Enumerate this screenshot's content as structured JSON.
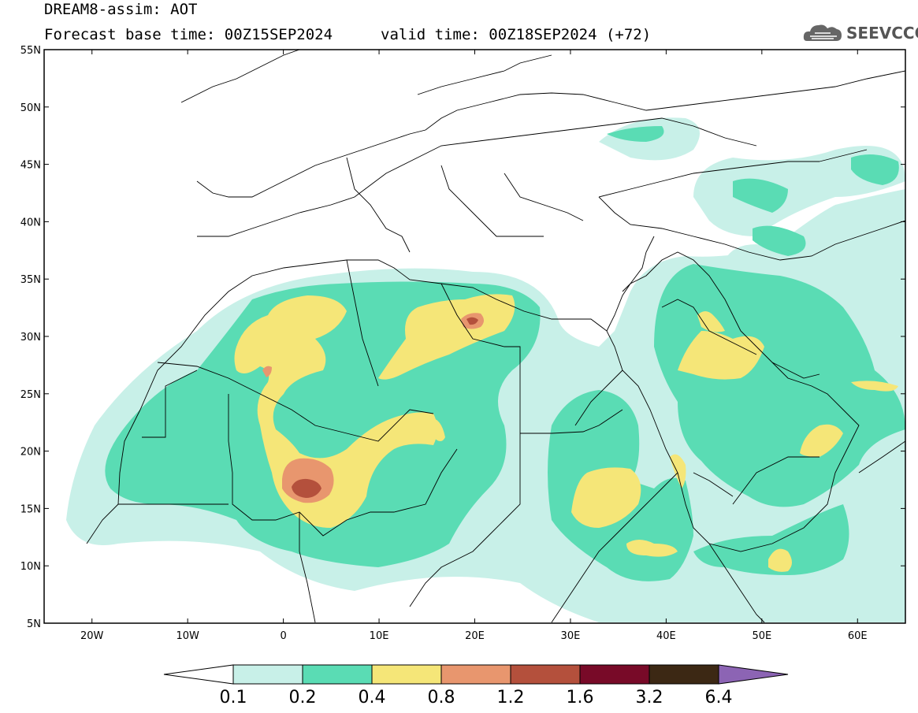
{
  "header": {
    "title": "DREAM8-assim: AOT",
    "base_time": "Forecast base time: 00Z15SEP2024",
    "valid_time": "valid time: 00Z18SEP2024 (+72)"
  },
  "logo": {
    "text": "SEEVCCC",
    "icon": "cloud-icon"
  },
  "map": {
    "lat_labels": [
      "55N",
      "50N",
      "45N",
      "40N",
      "35N",
      "30N",
      "25N",
      "20N",
      "15N",
      "10N",
      "5N"
    ],
    "lon_labels": [
      "20W",
      "10W",
      "0",
      "10E",
      "20E",
      "30E",
      "40E",
      "50E",
      "60E"
    ],
    "lon_range": [
      -25,
      65
    ],
    "lat_range": [
      5,
      55
    ],
    "variable": "aerosol optical thickness"
  },
  "colorbar": {
    "levels": [
      "0.1",
      "0.2",
      "0.4",
      "0.8",
      "1.2",
      "1.6",
      "3.2",
      "6.4"
    ],
    "colors": [
      "#c8f0e8",
      "#5adcb4",
      "#f5e678",
      "#e8966e",
      "#b4503c",
      "#780a28",
      "#3c2814",
      "#8c64b4"
    ],
    "under_color": "#ffffff"
  }
}
